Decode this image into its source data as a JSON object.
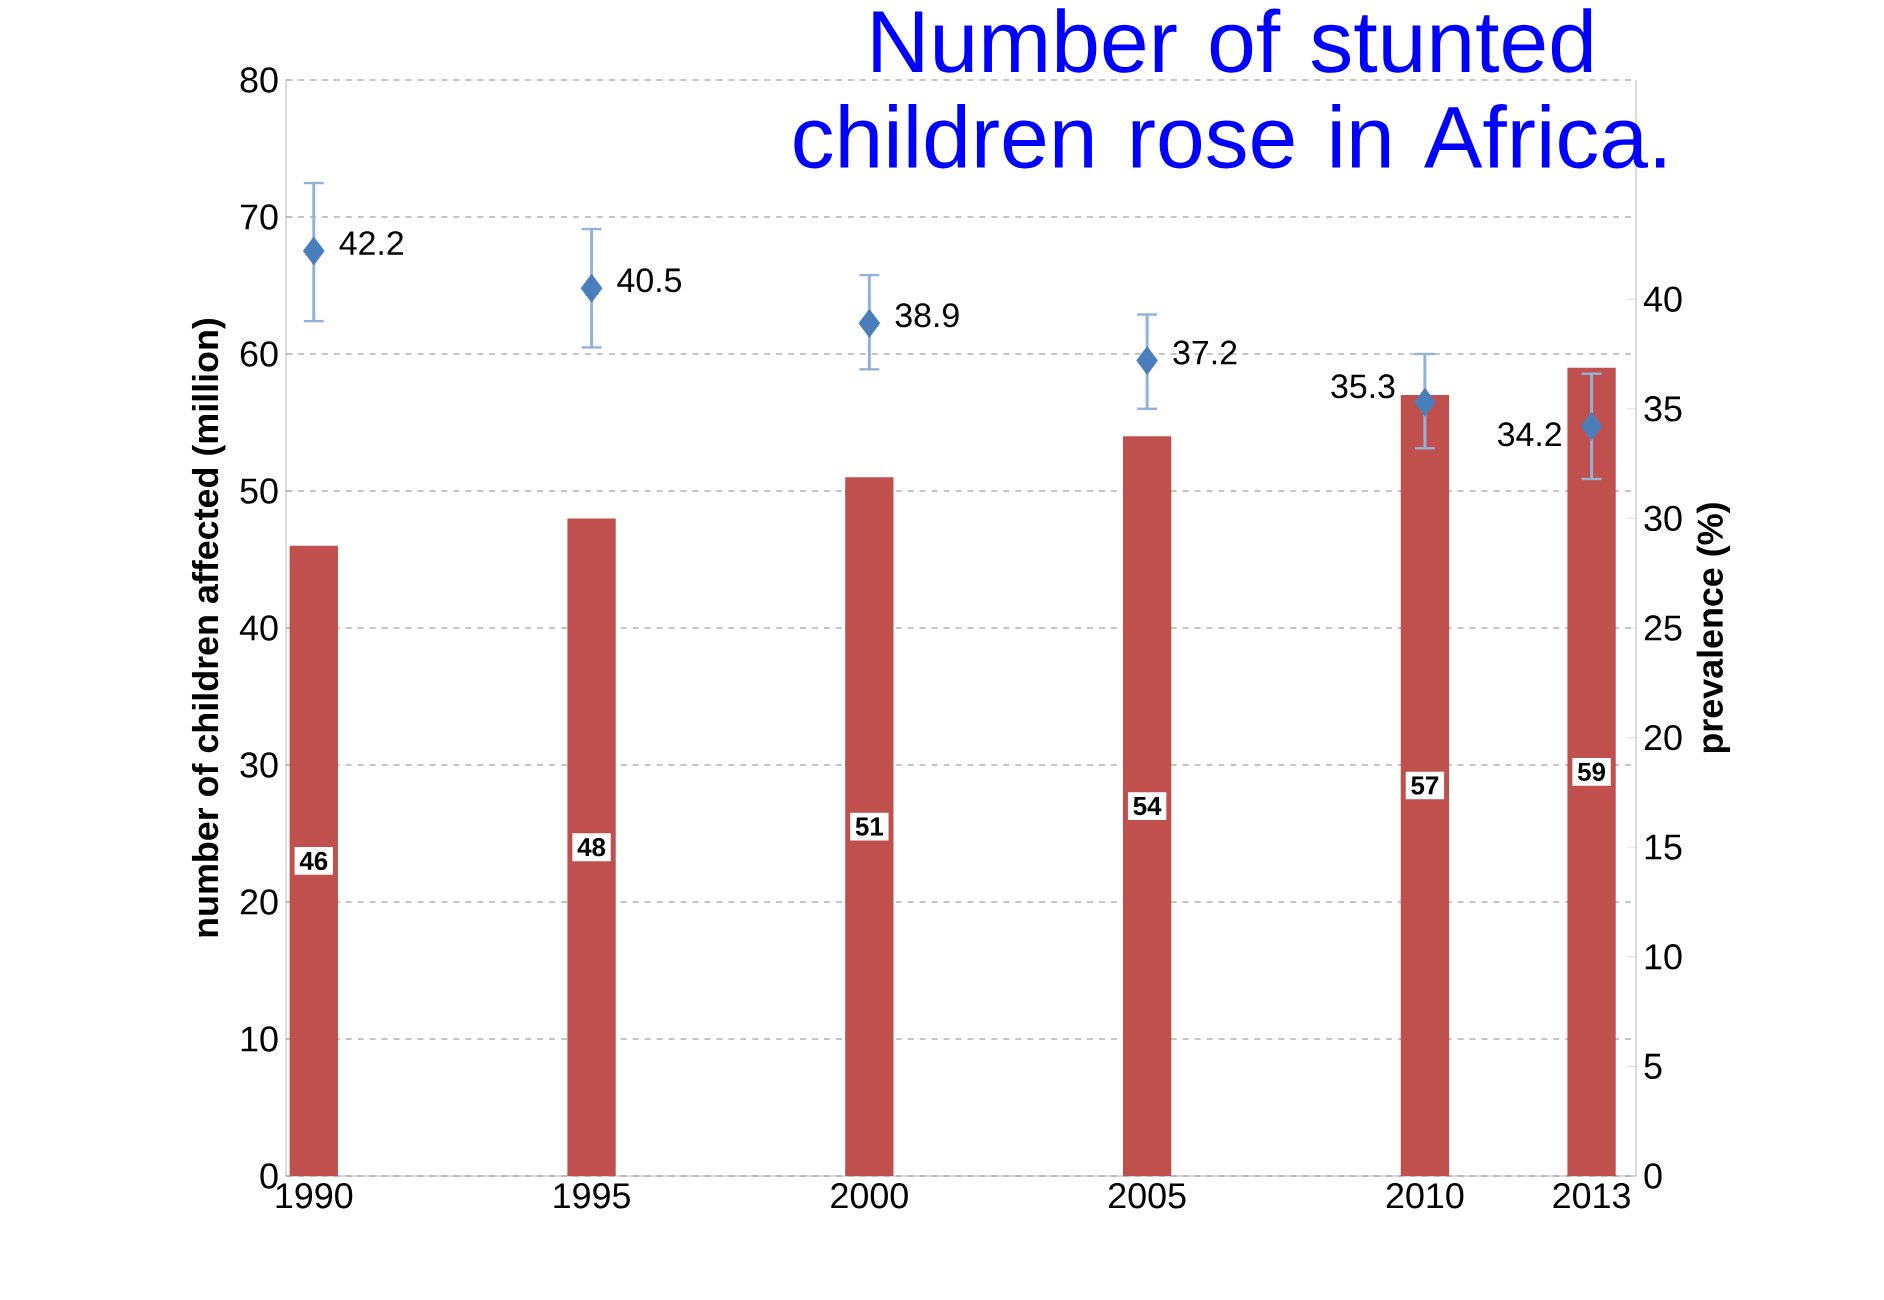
{
  "chart_data": {
    "type": "bar",
    "title": "Number of stunted children rose in Africa.",
    "ylabel": "number of children affected (million)",
    "y2label": "prevalence (%)",
    "x": [
      1990,
      1995,
      2000,
      2005,
      2010,
      2013
    ],
    "xlim": [
      1989.5,
      2013.8
    ],
    "xticks": [
      1990,
      1995,
      2000,
      2005,
      2010,
      2013
    ],
    "ylim": [
      0,
      80
    ],
    "yticks": [
      0,
      10,
      20,
      30,
      40,
      50,
      60,
      70,
      80
    ],
    "y2lim": [
      0,
      50
    ],
    "y2ticks": [
      0,
      5,
      10,
      15,
      20,
      25,
      30,
      35,
      40
    ],
    "grid": "y",
    "data_labels": true,
    "series": [
      {
        "color": "#c0504d",
        "values": [
          46,
          48,
          51,
          54,
          57,
          59
        ]
      },
      {
        "type": "scatter",
        "axis": "y2",
        "marker": "diamond",
        "color": "#4a7ebb",
        "values": [
          42.2,
          40.5,
          38.9,
          37.2,
          35.3,
          34.2
        ],
        "errors": [
          [
            39.0,
            45.3
          ],
          [
            37.8,
            43.2
          ],
          [
            36.8,
            41.1
          ],
          [
            35.0,
            39.3
          ],
          [
            33.2,
            37.5
          ],
          [
            31.8,
            36.6
          ]
        ]
      }
    ]
  }
}
